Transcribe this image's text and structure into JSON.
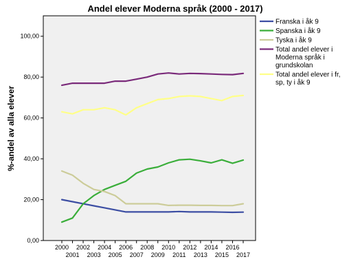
{
  "chart_data": {
    "type": "line",
    "title": "Andel elever Moderna språk (2000 - 2017)",
    "xlabel": "",
    "ylabel": "%-andel av alla elever",
    "x": [
      2000,
      2001,
      2002,
      2003,
      2004,
      2005,
      2006,
      2007,
      2008,
      2009,
      2010,
      2011,
      2012,
      2013,
      2014,
      2015,
      2016,
      2017
    ],
    "x_tick_labels": [
      "2000",
      "2001",
      "2002",
      "2003",
      "2004",
      "2005",
      "2006",
      "2007",
      "2008",
      "2009",
      "2010",
      "2011",
      "2012",
      "2013",
      "2014",
      "2015",
      "2016",
      "2017"
    ],
    "ylim": [
      0,
      110
    ],
    "y_ticks": [
      0,
      20,
      40,
      60,
      80,
      100
    ],
    "y_tick_labels": [
      "0,00",
      "20,00",
      "40,00",
      "60,00",
      "80,00",
      "100,00"
    ],
    "grid": false,
    "legend_position": "right",
    "series": [
      {
        "name": "Franska i åk 9",
        "color": "#3c4ea3",
        "values": [
          20,
          19,
          18,
          17,
          16,
          15,
          14,
          14,
          14,
          14,
          14,
          14.2,
          14,
          14,
          14,
          13.9,
          13.8,
          13.9
        ]
      },
      {
        "name": "Spanska i åk 9",
        "color": "#3aae3a",
        "values": [
          9,
          11,
          18,
          22,
          25,
          27,
          29,
          33,
          35,
          36,
          38,
          39.5,
          39.8,
          39,
          38,
          39.5,
          37.8,
          39.4
        ]
      },
      {
        "name": "Tyska i åk 9",
        "color": "#cccc99",
        "values": [
          34,
          32,
          28,
          25,
          24,
          22,
          18,
          18,
          18,
          18,
          17.2,
          17.3,
          17.3,
          17.2,
          17.2,
          17.1,
          17.1,
          18
        ]
      },
      {
        "name": "Total andel elever i Moderna språk i grundskolan",
        "legend_lines": [
          "Total andel elever i",
          "Moderna språk i",
          "grundskolan"
        ],
        "color": "#7a2a7a",
        "values": [
          76,
          77,
          77,
          77,
          77,
          78,
          78,
          79,
          80,
          81.5,
          82,
          81.5,
          81.8,
          81.7,
          81.5,
          81.3,
          81.2,
          81.8
        ]
      },
      {
        "name": "Total andel elever i fr, sp, ty i åk 9",
        "legend_lines": [
          "Total andel elever i fr,",
          "sp, ty i åk 9"
        ],
        "color": "#ffff88",
        "values": [
          63,
          62,
          64,
          64,
          65,
          64,
          61.5,
          65,
          67,
          69,
          69.5,
          70.5,
          70.8,
          70.5,
          69.5,
          68.5,
          70.5,
          71
        ]
      }
    ]
  }
}
